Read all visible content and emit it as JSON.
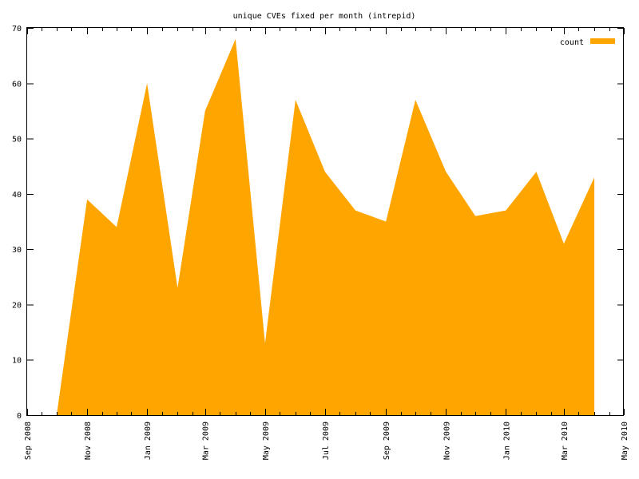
{
  "chart_data": {
    "type": "area",
    "title": "unique CVEs fixed per month (intrepid)",
    "xlabel": "",
    "ylabel": "",
    "legend_position": "top-right",
    "grid": false,
    "x_tick_labels": [
      "Sep 2008",
      "Nov 2008",
      "Jan 2009",
      "Mar 2009",
      "May 2009",
      "Jul 2009",
      "Sep 2009",
      "Nov 2009",
      "Jan 2010",
      "Mar 2010",
      "May 2010"
    ],
    "y_ticks": [
      0,
      10,
      20,
      30,
      40,
      50,
      60,
      70
    ],
    "xlim": [
      "2008-09-01",
      "2010-05-01"
    ],
    "ylim": [
      0,
      70
    ],
    "color": "#ffa500",
    "series": [
      {
        "name": "count",
        "x": [
          "2008-10-01",
          "2008-11-01",
          "2008-12-01",
          "2009-01-01",
          "2009-02-01",
          "2009-03-01",
          "2009-04-01",
          "2009-05-01",
          "2009-06-01",
          "2009-07-01",
          "2009-08-01",
          "2009-09-01",
          "2009-10-01",
          "2009-11-01",
          "2009-12-01",
          "2010-01-01",
          "2010-02-01",
          "2010-03-01",
          "2010-04-01"
        ],
        "values": [
          0,
          39,
          34,
          60,
          23,
          55,
          68,
          13,
          57,
          44,
          37,
          35,
          57,
          44,
          36,
          37,
          44,
          31,
          43
        ]
      }
    ]
  }
}
